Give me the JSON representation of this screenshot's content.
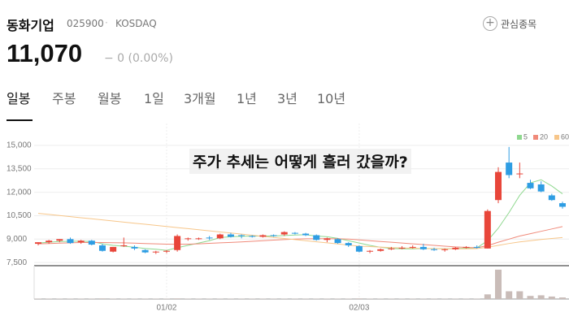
{
  "header": {
    "name": "동화기업",
    "code": "025900",
    "separator": "·",
    "market": "KOSDAQ",
    "price": "11,070",
    "change": "− 0 (0.00%)",
    "favorite": "관심종목",
    "favorite_icon": "+"
  },
  "tabs": [
    "일봉",
    "주봉",
    "월봉",
    "1일",
    "3개월",
    "1년",
    "3년",
    "10년"
  ],
  "active_tab": 0,
  "chart_data": {
    "type": "candlestick",
    "annotation": "주가 추세는 어떻게 흘러 갔을까?",
    "up_color": "#e8463a",
    "down_color": "#2e9de3",
    "volume_color": "#c9bcb8",
    "ylim": [
      7300,
      16400
    ],
    "yticks": [
      {
        "value": 15000,
        "label": "15,000"
      },
      {
        "value": 13500,
        "label": "13,500"
      },
      {
        "value": 12000,
        "label": "12,000"
      },
      {
        "value": 10500,
        "label": "10,500"
      },
      {
        "value": 9000,
        "label": "9,000"
      },
      {
        "value": 7500,
        "label": "7,500"
      }
    ],
    "vlim": [
      0,
      100
    ],
    "categories": [
      null,
      null,
      null,
      null,
      null,
      null,
      null,
      null,
      null,
      null,
      null,
      null,
      "01/02",
      null,
      null,
      null,
      null,
      null,
      null,
      null,
      null,
      null,
      null,
      null,
      null,
      null,
      null,
      null,
      null,
      null,
      "02/03",
      null,
      null,
      null,
      null,
      null,
      null,
      null,
      null,
      null,
      null,
      null,
      null,
      null,
      null,
      null,
      null,
      null,
      null,
      null
    ],
    "ohlc": [
      [
        8700,
        8800,
        8600,
        8800
      ],
      [
        8800,
        8950,
        8700,
        8900
      ],
      [
        8900,
        9000,
        8800,
        9000
      ],
      [
        9000,
        9100,
        8700,
        8750
      ],
      [
        8800,
        8950,
        8700,
        8900
      ],
      [
        8900,
        8950,
        8600,
        8650
      ],
      [
        8600,
        8700,
        8200,
        8250
      ],
      [
        8200,
        8500,
        8150,
        8500
      ],
      [
        8600,
        9100,
        8500,
        8600
      ],
      [
        8500,
        8600,
        8300,
        8400
      ],
      [
        8300,
        8350,
        8100,
        8150
      ],
      [
        8150,
        8250,
        8050,
        8200
      ],
      [
        8200,
        8300,
        8100,
        8250
      ],
      [
        8300,
        9300,
        8200,
        9200
      ],
      [
        9000,
        9100,
        8900,
        9050
      ],
      [
        9000,
        9100,
        8950,
        9050
      ],
      [
        9100,
        9200,
        8950,
        9050
      ],
      [
        9050,
        9350,
        9000,
        9300
      ],
      [
        9300,
        9400,
        9100,
        9150
      ],
      [
        9250,
        9300,
        9050,
        9200
      ],
      [
        9200,
        9250,
        9100,
        9150
      ],
      [
        9150,
        9300,
        9100,
        9250
      ],
      [
        9250,
        9300,
        9150,
        9200
      ],
      [
        9300,
        9500,
        9200,
        9450
      ],
      [
        9400,
        9450,
        9300,
        9350
      ],
      [
        9350,
        9400,
        9200,
        9250
      ],
      [
        9250,
        9300,
        8900,
        8950
      ],
      [
        8950,
        9100,
        8800,
        9050
      ],
      [
        9000,
        9050,
        8700,
        8750
      ],
      [
        8750,
        8800,
        8500,
        8600
      ],
      [
        8550,
        8600,
        8150,
        8200
      ],
      [
        8200,
        8300,
        8100,
        8250
      ],
      [
        8250,
        8400,
        8200,
        8350
      ],
      [
        8350,
        8500,
        8300,
        8400
      ],
      [
        8400,
        8550,
        8350,
        8450
      ],
      [
        8450,
        8600,
        8400,
        8500
      ],
      [
        8500,
        8700,
        8300,
        8350
      ],
      [
        8350,
        8450,
        8250,
        8300
      ],
      [
        8300,
        8400,
        8200,
        8350
      ],
      [
        8350,
        8500,
        8300,
        8450
      ],
      [
        8450,
        8550,
        8400,
        8500
      ],
      [
        8500,
        8600,
        8400,
        8450
      ],
      [
        8400,
        10900,
        8400,
        10800
      ],
      [
        11500,
        13600,
        11300,
        13300
      ],
      [
        13900,
        14900,
        12900,
        13100
      ],
      [
        13200,
        13900,
        12900,
        13200
      ],
      [
        12600,
        12800,
        12200,
        12250
      ],
      [
        12500,
        12700,
        12000,
        12050
      ],
      [
        11800,
        11900,
        11450,
        11500
      ],
      [
        11300,
        11400,
        10950,
        11070
      ]
    ],
    "volume": [
      1,
      1,
      1,
      1,
      1,
      1,
      2,
      1,
      1,
      1,
      1,
      1,
      1,
      2,
      1,
      1,
      1,
      1,
      1,
      1,
      1,
      1,
      1,
      1,
      1,
      1,
      1,
      1,
      1,
      1,
      2,
      1,
      1,
      1,
      1,
      1,
      1,
      1,
      1,
      1,
      1,
      1,
      15,
      95,
      25,
      25,
      10,
      12,
      8,
      5
    ],
    "series": [
      {
        "name": "5",
        "color": "#8fd88f",
        "values": [
          8750,
          8800,
          8850,
          8860,
          8870,
          8850,
          8700,
          8600,
          8550,
          8480,
          8400,
          8350,
          8280,
          8450,
          8600,
          8750,
          8900,
          9100,
          9150,
          9180,
          9190,
          9200,
          9200,
          9230,
          9260,
          9280,
          9200,
          9150,
          9050,
          8900,
          8750,
          8600,
          8480,
          8400,
          8380,
          8380,
          8400,
          8400,
          8380,
          8400,
          8420,
          8440,
          8900,
          9700,
          10700,
          11800,
          12600,
          12800,
          12400,
          11900
        ]
      },
      {
        "name": "20",
        "color": "#f08a7a",
        "values": [
          8700,
          8720,
          8740,
          8760,
          8780,
          8790,
          8780,
          8770,
          8760,
          8740,
          8720,
          8700,
          8680,
          8670,
          8680,
          8700,
          8730,
          8760,
          8790,
          8820,
          8860,
          8900,
          8940,
          8970,
          9000,
          9020,
          9030,
          9030,
          9020,
          9000,
          8950,
          8900,
          8850,
          8800,
          8750,
          8700,
          8650,
          8600,
          8550,
          8500,
          8470,
          8450,
          8580,
          8800,
          9000,
          9200,
          9350,
          9500,
          9650,
          9800
        ]
      },
      {
        "name": "60",
        "color": "#f7c68a",
        "values": [
          10650,
          10580,
          10510,
          10440,
          10370,
          10300,
          10230,
          10160,
          10090,
          10020,
          9950,
          9880,
          9810,
          9740,
          9670,
          9600,
          9530,
          9460,
          9390,
          9320,
          9250,
          9180,
          9110,
          9040,
          8970,
          8900,
          8830,
          8760,
          8690,
          8620,
          8550,
          8520,
          8490,
          8460,
          8440,
          8420,
          8400,
          8390,
          8380,
          8380,
          8380,
          8390,
          8480,
          8600,
          8720,
          8820,
          8900,
          8980,
          9040,
          9100
        ]
      }
    ],
    "legend": "top-right",
    "grid": true
  }
}
